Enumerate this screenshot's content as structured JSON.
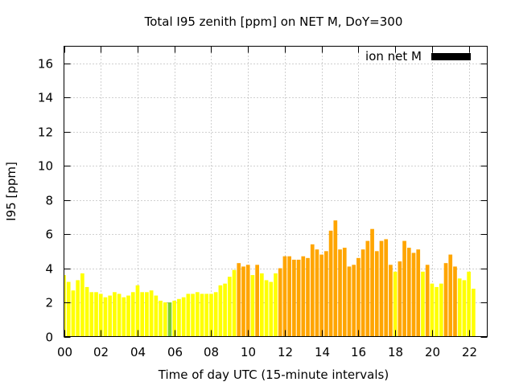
{
  "chart_data": {
    "type": "bar",
    "title": "Total I95 zenith [ppm] on NET M, DoY=300",
    "xlabel": "Time of day UTC (15-minute intervals)",
    "ylabel": "I95 [ppm]",
    "xlim": [
      0,
      23
    ],
    "ylim": [
      0,
      17
    ],
    "x_ticks": [
      0,
      2,
      4,
      6,
      8,
      10,
      12,
      14,
      16,
      18,
      20,
      22
    ],
    "x_tick_labels": [
      "00",
      "02",
      "04",
      "06",
      "08",
      "10",
      "12",
      "14",
      "16",
      "18",
      "20",
      "22"
    ],
    "y_ticks": [
      0,
      2,
      4,
      6,
      8,
      10,
      12,
      14,
      16
    ],
    "y_tick_labels": [
      "0",
      "2",
      "4",
      "6",
      "8",
      "10",
      "12",
      "14",
      "16"
    ],
    "grid": true,
    "legend": {
      "label": "ion net M",
      "color": "#000000",
      "placement": "top-right"
    },
    "bar_interval_hours": 0.25,
    "values": [
      3.6,
      3.2,
      2.7,
      3.3,
      3.7,
      2.9,
      2.6,
      2.6,
      2.5,
      2.3,
      2.4,
      2.6,
      2.5,
      2.3,
      2.4,
      2.6,
      3.0,
      2.6,
      2.6,
      2.7,
      2.4,
      2.1,
      2.0,
      2.0,
      2.1,
      2.2,
      2.3,
      2.5,
      2.5,
      2.6,
      2.5,
      2.5,
      2.5,
      2.6,
      3.0,
      3.1,
      3.5,
      3.9,
      4.3,
      4.1,
      4.2,
      3.6,
      4.2,
      3.7,
      3.3,
      3.2,
      3.7,
      4.0,
      4.7,
      4.7,
      4.5,
      4.5,
      4.7,
      4.6,
      5.4,
      5.1,
      4.8,
      5.0,
      6.2,
      6.8,
      5.1,
      5.2,
      4.1,
      4.2,
      4.6,
      5.1,
      5.6,
      6.3,
      5.0,
      5.6,
      5.7,
      4.2,
      3.8,
      4.4,
      5.6,
      5.2,
      4.9,
      5.1,
      3.8,
      4.2,
      3.1,
      2.9,
      3.1,
      4.3,
      4.8,
      4.1,
      3.4,
      3.3,
      3.8,
      2.8
    ],
    "colors": [
      "#ffff00",
      "#ffff00",
      "#ffff00",
      "#ffff00",
      "#ffff00",
      "#ffff00",
      "#ffff00",
      "#ffff00",
      "#ffff00",
      "#ffff00",
      "#ffff00",
      "#ffff00",
      "#ffff00",
      "#ffff00",
      "#ffff00",
      "#ffff00",
      "#ffff00",
      "#ffff00",
      "#ffff00",
      "#ffff00",
      "#ffff00",
      "#ffff00",
      "#ffff00",
      "#7ccd32",
      "#ffff00",
      "#ffff00",
      "#ffff00",
      "#ffff00",
      "#ffff00",
      "#ffff00",
      "#ffff00",
      "#ffff00",
      "#ffff00",
      "#ffff00",
      "#ffff00",
      "#ffff00",
      "#ffff00",
      "#ffff00",
      "#ffa500",
      "#ffa500",
      "#ffa500",
      "#ffff00",
      "#ffa500",
      "#ffff00",
      "#ffff00",
      "#ffff00",
      "#ffff00",
      "#ffa500",
      "#ffa500",
      "#ffa500",
      "#ffa500",
      "#ffa500",
      "#ffa500",
      "#ffa500",
      "#ffa500",
      "#ffa500",
      "#ffa500",
      "#ffa500",
      "#ffa500",
      "#ffa500",
      "#ffa500",
      "#ffa500",
      "#ffa500",
      "#ffa500",
      "#ffa500",
      "#ffa500",
      "#ffa500",
      "#ffa500",
      "#ffa500",
      "#ffa500",
      "#ffa500",
      "#ffa500",
      "#ffff00",
      "#ffa500",
      "#ffa500",
      "#ffa500",
      "#ffa500",
      "#ffa500",
      "#ffff00",
      "#ffa500",
      "#ffff00",
      "#ffff00",
      "#ffff00",
      "#ffa500",
      "#ffa500",
      "#ffa500",
      "#ffff00",
      "#ffff00",
      "#ffff00",
      "#ffff00"
    ]
  }
}
